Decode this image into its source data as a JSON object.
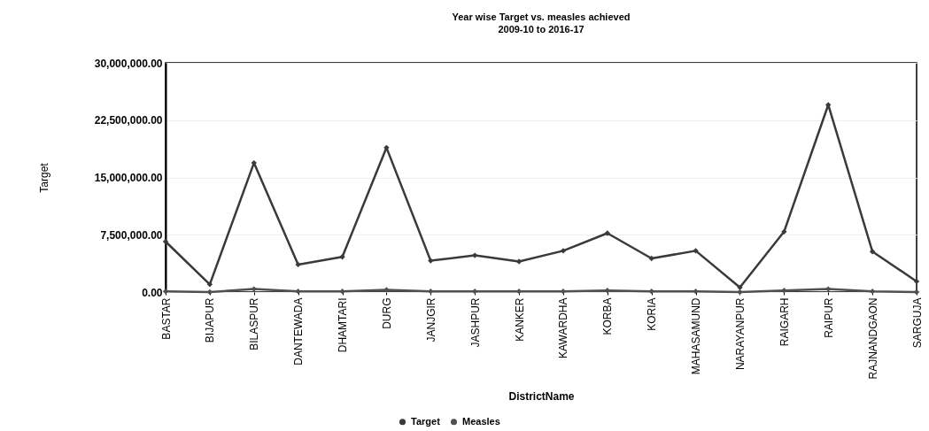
{
  "chart_data": {
    "type": "line",
    "title": "Year wise Target vs. measles achieved",
    "subtitle": "2009-10 to 2016-17",
    "xlabel": "DistrictName",
    "ylabel": "Target",
    "categories": [
      "BASTAR",
      "BIJAPUR",
      "BILASPUR",
      "DANTEWADA",
      "DHAMTARI",
      "DURG",
      "JANJGIR",
      "JASHPUR",
      "KANKER",
      "KAWARDHA",
      "KORBA",
      "KORIA",
      "MAHASAMUND",
      "NARAYANPUR",
      "RAIGARH",
      "RAIPUR",
      "RAJNANDGAON",
      "SARGUJA"
    ],
    "series": [
      {
        "name": "Target",
        "color": "#3a3a3a",
        "values": [
          6600000,
          1000000,
          16900000,
          3600000,
          4600000,
          18900000,
          4100000,
          4800000,
          4000000,
          5400000,
          7700000,
          4400000,
          5400000,
          600000,
          7900000,
          24500000,
          5300000,
          1400000
        ]
      },
      {
        "name": "Measles",
        "color": "#505050",
        "values": [
          100000,
          0,
          400000,
          100000,
          100000,
          300000,
          100000,
          100000,
          100000,
          100000,
          200000,
          100000,
          100000,
          0,
          200000,
          400000,
          100000,
          0
        ]
      }
    ],
    "ylim": [
      0,
      30000000
    ],
    "yticks": [
      {
        "value": 0,
        "label": "0.00"
      },
      {
        "value": 7500000,
        "label": "7,500,000.00"
      },
      {
        "value": 15000000,
        "label": "15,000,000.00"
      },
      {
        "value": 22500000,
        "label": "22,500,000.00"
      },
      {
        "value": 30000000,
        "label": "30,000,000.00"
      }
    ],
    "grid": "y",
    "legend": "bottom",
    "marker": "diamond",
    "line_style": "solid"
  }
}
